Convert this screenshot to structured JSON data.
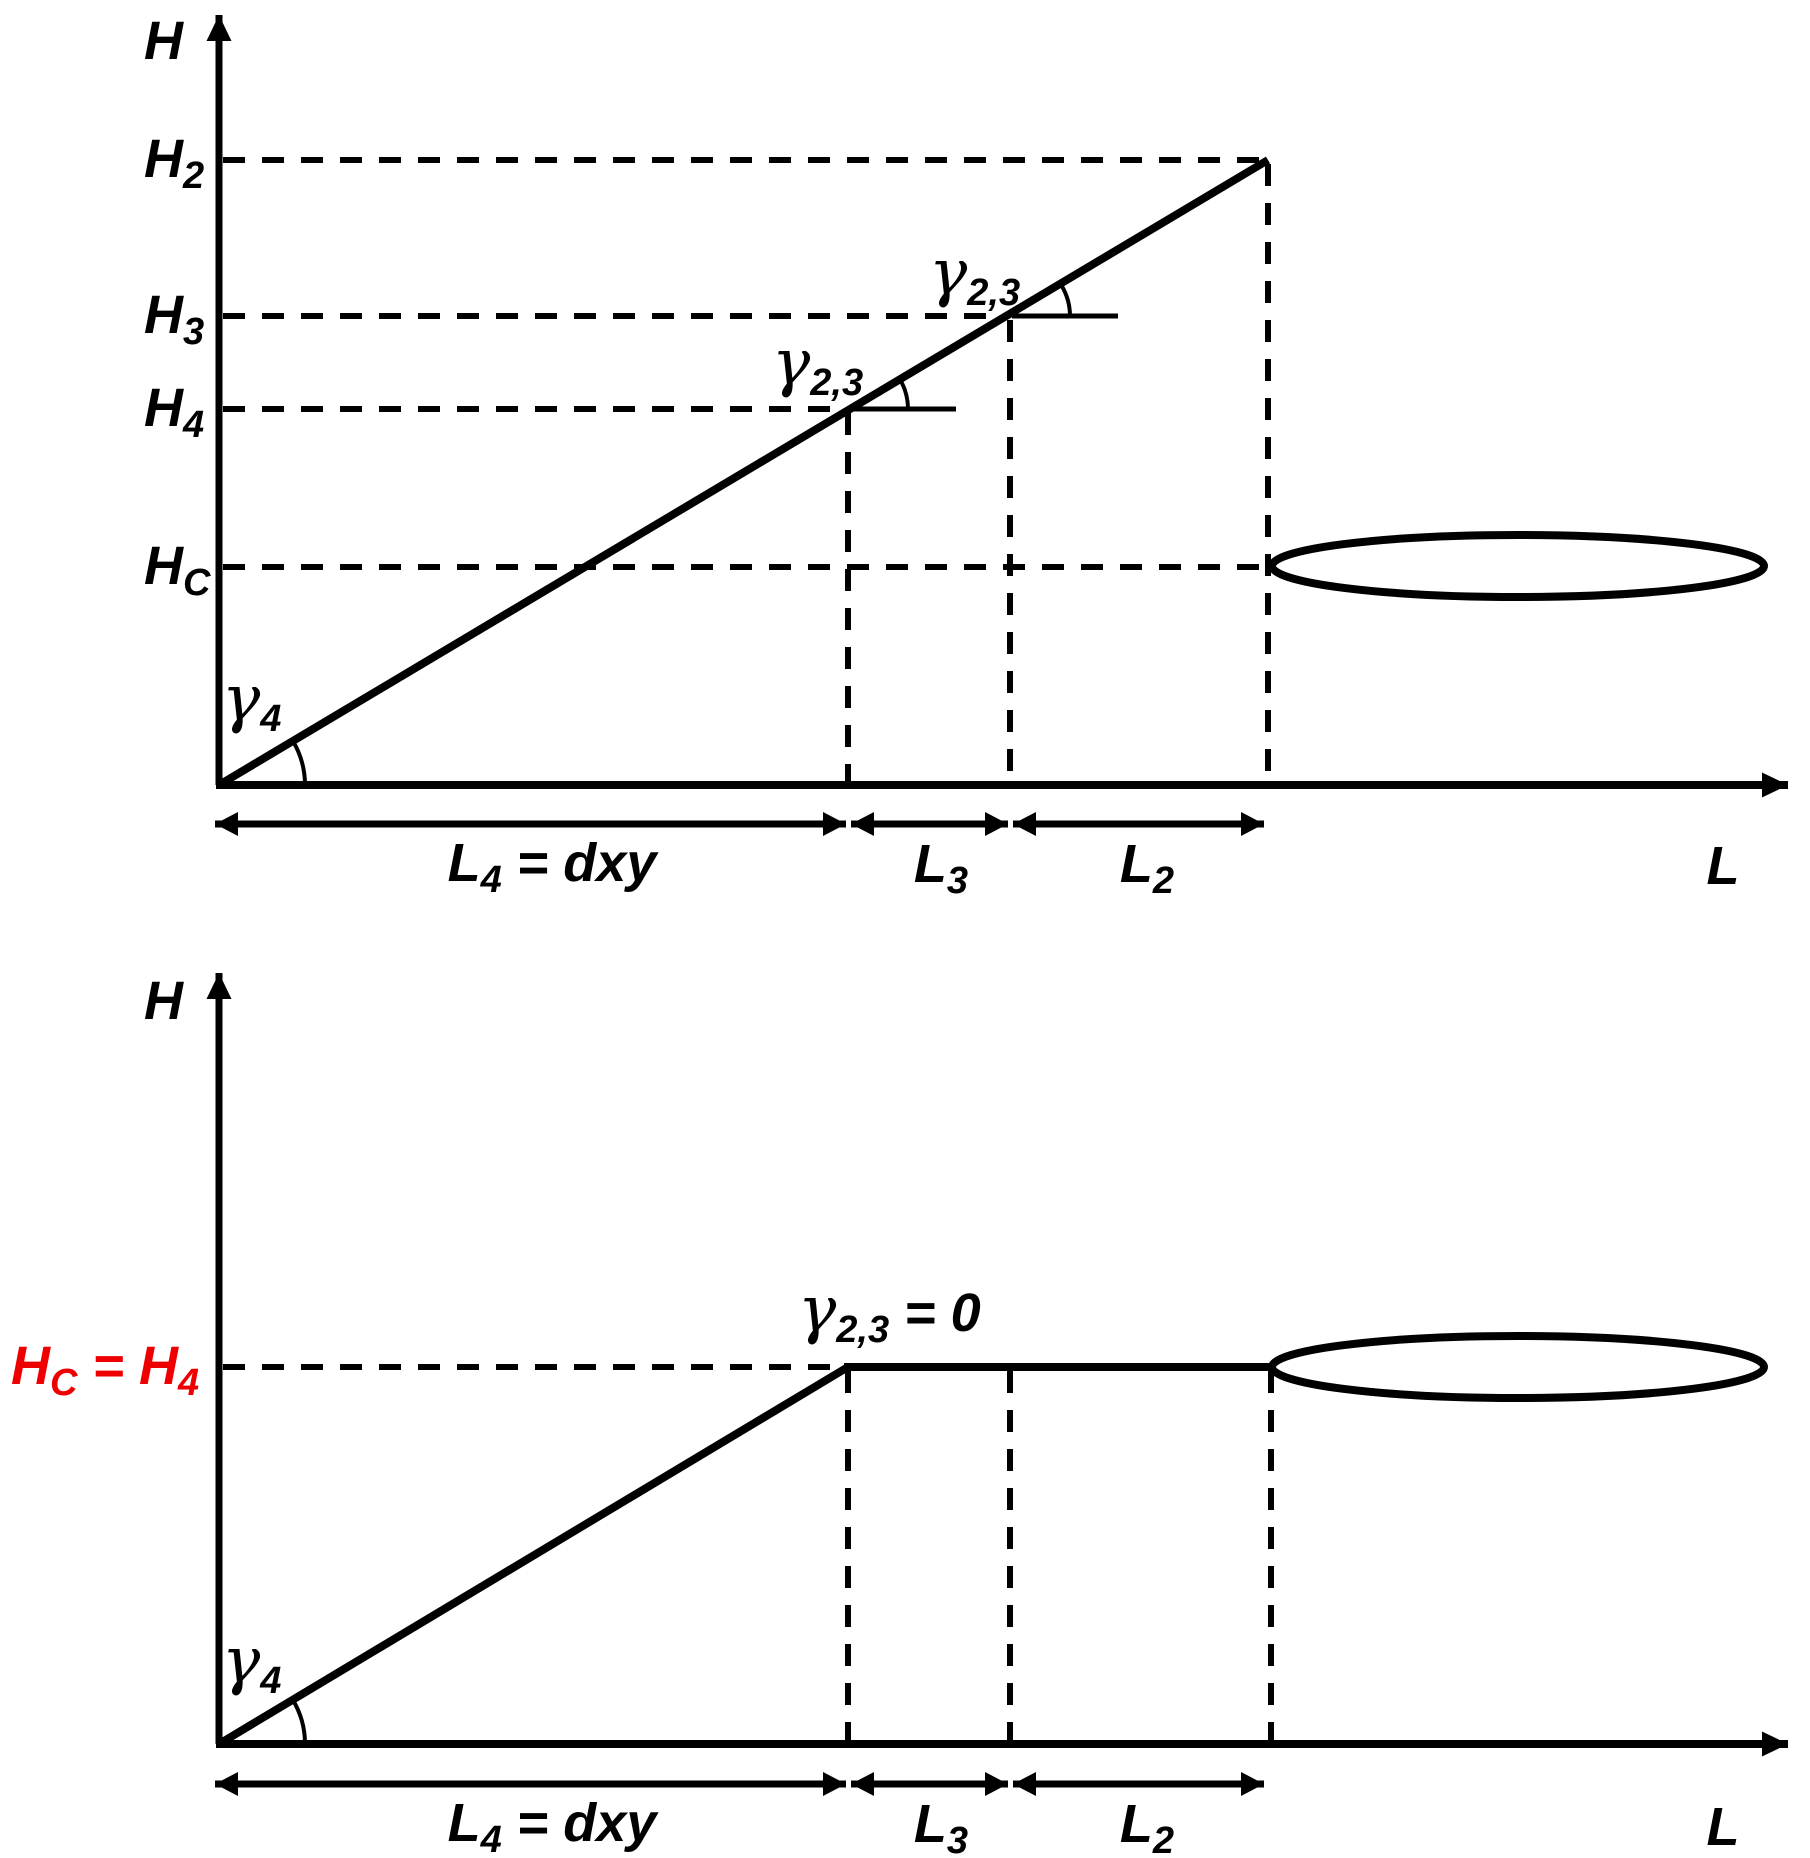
{
  "colors": {
    "ink": "#000000",
    "highlight": "#ee0000",
    "background": "#ffffff"
  },
  "top_diagram": {
    "y_axis_label": "H",
    "x_axis_label": "L",
    "level_labels": {
      "h2": [
        {
          "t": "H"
        },
        {
          "t": "2",
          "sub": true
        }
      ],
      "h3": [
        {
          "t": "H"
        },
        {
          "t": "3",
          "sub": true
        }
      ],
      "h4": [
        {
          "t": "H"
        },
        {
          "t": "4",
          "sub": true
        }
      ],
      "hc": [
        {
          "t": "H"
        },
        {
          "t": "C",
          "sub": true
        }
      ]
    },
    "angle_labels": {
      "gamma4": [
        {
          "t": "γ"
        },
        {
          "t": "4",
          "sub": true
        }
      ],
      "gamma23_at_h4": [
        {
          "t": "γ"
        },
        {
          "t": "2,3",
          "sub": true
        }
      ],
      "gamma23_at_h3": [
        {
          "t": "γ"
        },
        {
          "t": "2,3",
          "sub": true
        }
      ]
    },
    "distance_labels": {
      "l4": [
        {
          "t": "L"
        },
        {
          "t": "4",
          "sub": true
        },
        {
          "t": " = dxy"
        }
      ],
      "l3": [
        {
          "t": "L"
        },
        {
          "t": "3",
          "sub": true
        }
      ],
      "l2": [
        {
          "t": "L"
        },
        {
          "t": "2",
          "sub": true
        }
      ]
    }
  },
  "bottom_diagram": {
    "y_axis_label": "H",
    "x_axis_label": "L",
    "level_labels": {
      "hc_eq_h4": [
        {
          "t": "H"
        },
        {
          "t": "C",
          "sub": true
        },
        {
          "t": " = H"
        },
        {
          "t": "4",
          "sub": true
        }
      ]
    },
    "angle_labels": {
      "gamma4": [
        {
          "t": "γ"
        },
        {
          "t": "4",
          "sub": true
        }
      ],
      "gamma23_zero": [
        {
          "t": "γ"
        },
        {
          "t": "2,3",
          "sub": true
        },
        {
          "t": " = 0"
        }
      ]
    },
    "distance_labels": {
      "l4": [
        {
          "t": "L"
        },
        {
          "t": "4",
          "sub": true
        },
        {
          "t": " = dxy"
        }
      ],
      "l3": [
        {
          "t": "L"
        },
        {
          "t": "3",
          "sub": true
        }
      ],
      "l2": [
        {
          "t": "L"
        },
        {
          "t": "2",
          "sub": true
        }
      ]
    }
  }
}
